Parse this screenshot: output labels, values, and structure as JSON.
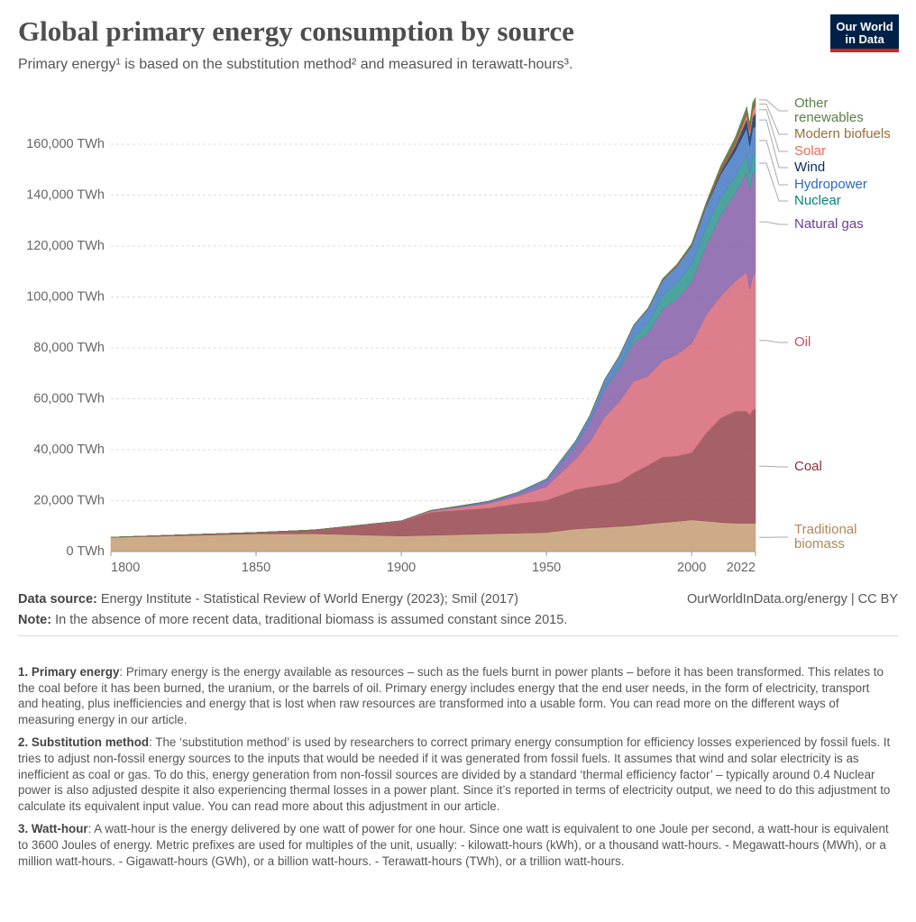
{
  "logo": "Our World in Data",
  "chart_data": {
    "type": "stacked-area",
    "title": "Global primary energy consumption by source",
    "subtitle": "Primary energy¹ is based on the substitution method² and measured in terawatt-hours³.",
    "x": [
      1800,
      1850,
      1870,
      1900,
      1910,
      1920,
      1930,
      1940,
      1950,
      1960,
      1965,
      1970,
      1975,
      1980,
      1985,
      1990,
      1995,
      2000,
      2005,
      2010,
      2015,
      2019,
      2020,
      2021,
      2022
    ],
    "xlim": [
      1800,
      2022
    ],
    "xticks": [
      1800,
      1850,
      1900,
      1950,
      2000,
      2022
    ],
    "ylim": [
      0,
      180000
    ],
    "yticks": [
      {
        "value": 0,
        "label": "0 TWh"
      },
      {
        "value": 20000,
        "label": "20,000 TWh"
      },
      {
        "value": 40000,
        "label": "40,000 TWh"
      },
      {
        "value": 60000,
        "label": "60,000 TWh"
      },
      {
        "value": 80000,
        "label": "80,000 TWh"
      },
      {
        "value": 100000,
        "label": "100,000 TWh"
      },
      {
        "value": 120000,
        "label": "120,000 TWh"
      },
      {
        "value": 140000,
        "label": "140,000 TWh"
      },
      {
        "value": 160000,
        "label": "160,000 TWh"
      }
    ],
    "grid": true,
    "series": [
      {
        "name": "Traditional biomass",
        "color": "#c8a27c",
        "label_color": "#b0885a",
        "values": [
          5556,
          6945,
          7000,
          6111,
          6390,
          6670,
          6950,
          7220,
          7500,
          8890,
          9230,
          9530,
          9880,
          10250,
          10850,
          11420,
          11870,
          12450,
          11970,
          11450,
          11110,
          11110,
          11110,
          11110,
          11110
        ]
      },
      {
        "name": "Coal",
        "color": "#9c4f58",
        "label_color": "#883039",
        "values": [
          97,
          570,
          1500,
          5728,
          9000,
          9600,
          10100,
          11600,
          12600,
          15400,
          16100,
          16600,
          17400,
          20700,
          23000,
          25700,
          25700,
          26400,
          34500,
          41000,
          44000,
          44000,
          42500,
          44500,
          44900
        ]
      },
      {
        "name": "Oil",
        "color": "#d8707f",
        "label_color": "#c15065",
        "values": [
          0,
          0,
          10,
          181,
          500,
          1100,
          1800,
          3000,
          5444,
          12000,
          18000,
          26700,
          31500,
          36000,
          35000,
          37800,
          39900,
          43000,
          46500,
          47900,
          51000,
          54700,
          49400,
          52400,
          53800
        ]
      },
      {
        "name": "Natural gas",
        "color": "#8c67ad",
        "label_color": "#6d3e91",
        "values": [
          0,
          0,
          0,
          64,
          150,
          250,
          500,
          800,
          2092,
          5200,
          7700,
          11000,
          12800,
          15000,
          17000,
          20200,
          21700,
          24000,
          27200,
          31600,
          34700,
          39000,
          38500,
          40400,
          39400
        ]
      },
      {
        "name": "Nuclear",
        "color": "#3a9a95",
        "label_color": "#00847e",
        "values": [
          0,
          0,
          0,
          0,
          0,
          0,
          0,
          0,
          0,
          0,
          60,
          230,
          1100,
          1900,
          4000,
          5400,
          6300,
          6900,
          7300,
          7100,
          6500,
          6900,
          6700,
          6900,
          6700
        ]
      },
      {
        "name": "Hydropower",
        "color": "#4f81c8",
        "label_color": "#286bbb",
        "values": [
          0,
          0,
          0,
          0,
          100,
          300,
          400,
          600,
          900,
          1900,
          2500,
          3400,
          4000,
          4900,
          5500,
          6000,
          6700,
          7200,
          8000,
          9100,
          9900,
          10700,
          11000,
          10800,
          11100
        ]
      },
      {
        "name": "Wind",
        "color": "#1d3d63",
        "label_color": "#0b2a54",
        "values": [
          0,
          0,
          0,
          0,
          0,
          0,
          0,
          0,
          0,
          0,
          0,
          0,
          0,
          0,
          0,
          10,
          20,
          80,
          270,
          880,
          2100,
          3500,
          3900,
          4500,
          5000
        ]
      },
      {
        "name": "Solar",
        "color": "#e07a6e",
        "label_color": "#e56e5a",
        "values": [
          0,
          0,
          0,
          0,
          0,
          0,
          0,
          0,
          0,
          0,
          0,
          0,
          0,
          0,
          0,
          0,
          0,
          0,
          0,
          84,
          640,
          1800,
          2100,
          2600,
          3100
        ]
      },
      {
        "name": "Modern biofuels",
        "color": "#a0522d",
        "label_color": "#996d39",
        "values": [
          0,
          0,
          0,
          0,
          0,
          0,
          0,
          0,
          0,
          0,
          0,
          0,
          0,
          0,
          0,
          200,
          200,
          280,
          500,
          1200,
          1200,
          1300,
          1200,
          1300,
          1300
        ]
      },
      {
        "name": "Other renewables",
        "color": "#578145",
        "label_color": "#578145",
        "values": [
          0,
          0,
          0,
          0,
          0,
          0,
          0,
          0,
          0,
          0,
          100,
          120,
          150,
          250,
          400,
          500,
          600,
          700,
          900,
          1200,
          1500,
          1800,
          1800,
          1900,
          1950
        ]
      }
    ],
    "source_label": "Data source:",
    "source": "Energy Institute - Statistical Review of World Energy (2023); Smil (2017)",
    "url": "OurWorldInData.org/energy | CC BY",
    "note_label": "Note:",
    "note": "In the absence of more recent data, traditional biomass is assumed constant since 2015.",
    "footnotes": [
      {
        "label": "1. Primary energy",
        "text": ": Primary energy is the energy available as resources – such as the fuels burnt in power plants – before it has been transformed. This relates to the coal before it has been burned, the uranium, or the barrels of oil. Primary energy includes energy that the end user needs, in the form of electricity, transport and heating, plus inefficiencies and energy that is lost when raw resources are transformed into a usable form. You can read more on the different ways of measuring energy in our article."
      },
      {
        "label": "2. Substitution method",
        "text": ": The ‘substitution method’ is used by researchers to correct primary energy consumption for efficiency losses experienced by fossil fuels. It tries to adjust non-fossil energy sources to the inputs that would be needed if it was generated from fossil fuels. It assumes that wind and solar electricity is as inefficient as coal or gas. To do this, energy generation from non-fossil sources are divided by a standard ‘thermal efficiency factor’ – typically around 0.4 Nuclear power is also adjusted despite it also experiencing thermal losses in a power plant. Since it’s reported in terms of electricity output, we need to do this adjustment to calculate its equivalent input value. You can read more about this adjustment in our article."
      },
      {
        "label": "3. Watt-hour",
        "text": ": A watt-hour is the energy delivered by one watt of power for one hour. Since one watt is equivalent to one Joule per second, a watt-hour is equivalent to 3600 Joules of energy. Metric prefixes are used for multiples of the unit, usually: - kilowatt-hours (kWh), or a thousand watt-hours. - Megawatt-hours (MWh), or a million watt-hours. - Gigawatt-hours (GWh), or a billion watt-hours. - Terawatt-hours (TWh), or a trillion watt-hours."
      }
    ]
  }
}
